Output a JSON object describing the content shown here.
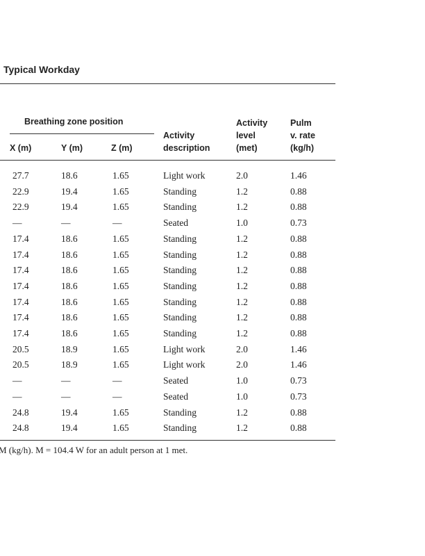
{
  "title": "Typical Workday",
  "table": {
    "group_header": "Breathing zone position",
    "columns": [
      {
        "lines": [
          "X (m)"
        ]
      },
      {
        "lines": [
          "Y (m)"
        ]
      },
      {
        "lines": [
          "Z (m)"
        ]
      },
      {
        "lines": [
          "Activity",
          "description"
        ]
      },
      {
        "lines": [
          "Activity",
          "level",
          "(met)"
        ]
      },
      {
        "lines": [
          "Pulm",
          "v. rate",
          "(kg/h)"
        ]
      }
    ],
    "rows": [
      [
        "27.7",
        "18.6",
        "1.65",
        "Light work",
        "2.0",
        "1.46"
      ],
      [
        "22.9",
        "19.4",
        "1.65",
        "Standing",
        "1.2",
        "0.88"
      ],
      [
        "22.9",
        "19.4",
        "1.65",
        "Standing",
        "1.2",
        "0.88"
      ],
      [
        "—",
        "—",
        "—",
        "Seated",
        "1.0",
        "0.73"
      ],
      [
        "17.4",
        "18.6",
        "1.65",
        "Standing",
        "1.2",
        "0.88"
      ],
      [
        "17.4",
        "18.6",
        "1.65",
        "Standing",
        "1.2",
        "0.88"
      ],
      [
        "17.4",
        "18.6",
        "1.65",
        "Standing",
        "1.2",
        "0.88"
      ],
      [
        "17.4",
        "18.6",
        "1.65",
        "Standing",
        "1.2",
        "0.88"
      ],
      [
        "17.4",
        "18.6",
        "1.65",
        "Standing",
        "1.2",
        "0.88"
      ],
      [
        "17.4",
        "18.6",
        "1.65",
        "Standing",
        "1.2",
        "0.88"
      ],
      [
        "17.4",
        "18.6",
        "1.65",
        "Standing",
        "1.2",
        "0.88"
      ],
      [
        "20.5",
        "18.9",
        "1.65",
        "Light work",
        "2.0",
        "1.46"
      ],
      [
        "20.5",
        "18.9",
        "1.65",
        "Light work",
        "2.0",
        "1.46"
      ],
      [
        "—",
        "—",
        "—",
        "Seated",
        "1.0",
        "0.73"
      ],
      [
        "—",
        "—",
        "—",
        "Seated",
        "1.0",
        "0.73"
      ],
      [
        "24.8",
        "19.4",
        "1.65",
        "Standing",
        "1.2",
        "0.88"
      ],
      [
        "24.8",
        "19.4",
        "1.65",
        "Standing",
        "1.2",
        "0.88"
      ]
    ],
    "footnote": "M (kg/h). M = 104.4 W for an adult person at 1 met."
  }
}
